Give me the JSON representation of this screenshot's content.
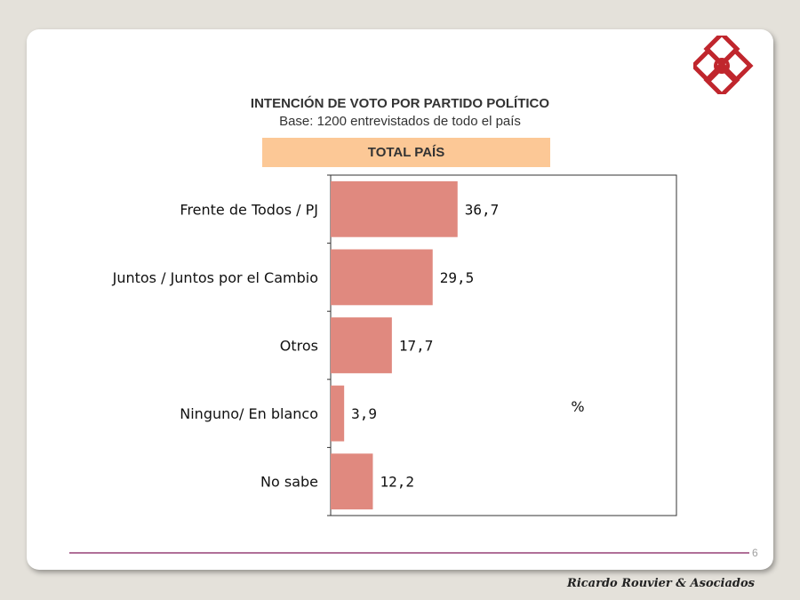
{
  "slide": {
    "page_number": "6",
    "footer_brand": "Ricardo Rouvier & Asociados",
    "logo_color": "#c0262d"
  },
  "chart_data": {
    "type": "bar",
    "orientation": "horizontal",
    "title": "INTENCIÓN DE VOTO POR PARTIDO POLÍTICO",
    "subtitle": "Base: 1200 entrevistados de todo el país",
    "banner": "TOTAL PAÍS",
    "unit_label": "%",
    "categories": [
      "Frente de Todos / PJ",
      "Juntos / Juntos por el Cambio",
      "Otros",
      "Ninguno/ En blanco",
      "No sabe"
    ],
    "values": [
      36.7,
      29.5,
      17.7,
      3.9,
      12.2
    ],
    "value_labels": [
      "36,7",
      "29,5",
      "17,7",
      "3,9",
      "12,2"
    ],
    "xlim": [
      0,
      100
    ],
    "bar_color": "#e0897f",
    "banner_color": "#fcc896",
    "grid": false,
    "legend": false
  }
}
